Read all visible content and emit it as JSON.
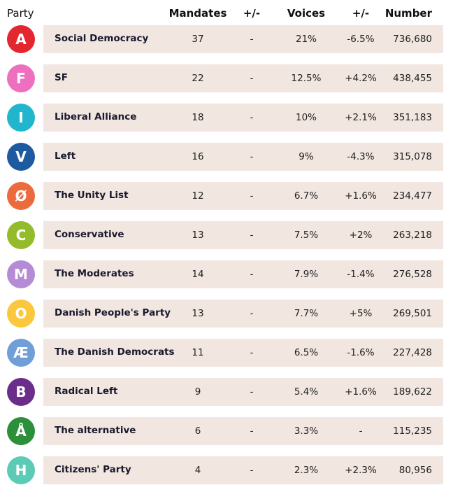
{
  "headers": {
    "party": "Party",
    "mandates": "Mandates",
    "mandates_change": "+/-",
    "voices": "Voices",
    "voices_change": "+/-",
    "number": "Number"
  },
  "rows": [
    {
      "letter": "A",
      "name": "Social Democracy",
      "mandates": "37",
      "mchange": "-",
      "voices": "21%",
      "vchange": "-6.5%",
      "number": "736,680",
      "color": "#e4262f"
    },
    {
      "letter": "F",
      "name": "SF",
      "mandates": "22",
      "mchange": "-",
      "voices": "12.5%",
      "vchange": "+4.2%",
      "number": "438,455",
      "color": "#ef6fbf"
    },
    {
      "letter": "I",
      "name": "Liberal Alliance",
      "mandates": "18",
      "mchange": "-",
      "voices": "10%",
      "vchange": "+2.1%",
      "number": "351,183",
      "color": "#21b6ce"
    },
    {
      "letter": "V",
      "name": "Left",
      "mandates": "16",
      "mchange": "-",
      "voices": "9%",
      "vchange": "-4.3%",
      "number": "315,078",
      "color": "#1e5aa0"
    },
    {
      "letter": "Ø",
      "name": "The Unity List",
      "mandates": "12",
      "mchange": "-",
      "voices": "6.7%",
      "vchange": "+1.6%",
      "number": "234,477",
      "color": "#ec6b3c"
    },
    {
      "letter": "C",
      "name": "Conservative",
      "mandates": "13",
      "mchange": "-",
      "voices": "7.5%",
      "vchange": "+2%",
      "number": "263,218",
      "color": "#94bb2a"
    },
    {
      "letter": "M",
      "name": "The Moderates",
      "mandates": "14",
      "mchange": "-",
      "voices": "7.9%",
      "vchange": "-1.4%",
      "number": "276,528",
      "color": "#b58bd6"
    },
    {
      "letter": "O",
      "name": "Danish People's Party",
      "mandates": "13",
      "mchange": "-",
      "voices": "7.7%",
      "vchange": "+5%",
      "number": "269,501",
      "color": "#fbc73c"
    },
    {
      "letter": "Æ",
      "name": "The Danish Democrats",
      "mandates": "11",
      "mchange": "-",
      "voices": "6.5%",
      "vchange": "-1.6%",
      "number": "227,428",
      "color": "#6f9fd6"
    },
    {
      "letter": "B",
      "name": "Radical Left",
      "mandates": "9",
      "mchange": "-",
      "voices": "5.4%",
      "vchange": "+1.6%",
      "number": "189,622",
      "color": "#6a2d8c"
    },
    {
      "letter": "Å",
      "name": "The alternative",
      "mandates": "6",
      "mchange": "-",
      "voices": "3.3%",
      "vchange": "-",
      "number": "115,235",
      "color": "#2c8f3a"
    },
    {
      "letter": "H",
      "name": "Citizens' Party",
      "mandates": "4",
      "mchange": "-",
      "voices": "2.3%",
      "vchange": "+2.3%",
      "number": "80,956",
      "color": "#5ccbb6"
    }
  ]
}
